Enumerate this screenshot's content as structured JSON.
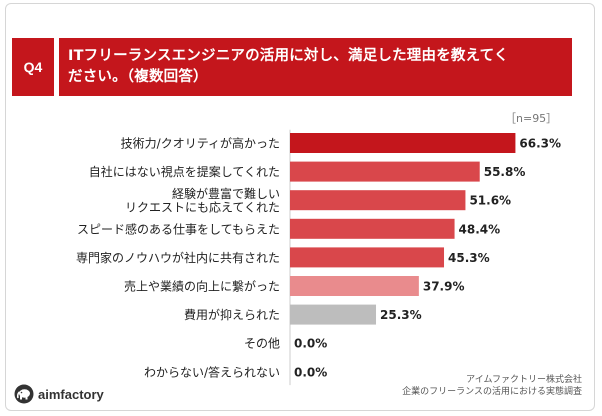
{
  "header": {
    "badge": "Q4",
    "question_line1": "ITフリーランスエンジニアの活用に対し、満足した理由を教えてく",
    "question_line2": "ださい。（複数回答）"
  },
  "sample_note": "［n=95］",
  "chart_data": {
    "type": "bar",
    "orientation": "horizontal",
    "unit": "%",
    "categories": [
      "技術力/クオリティが高かった",
      "自社にはない視点を提案してくれた",
      "経験が豊富で難しいリクエストにも応えてくれた",
      "スピード感のある仕事をしてもらえた",
      "専門家のノウハウが社内に共有された",
      "売上や業績の向上に繋がった",
      "費用が抑えられた",
      "その他",
      "わからない/答えられない"
    ],
    "category_lines": [
      [
        "技術力/クオリティが高かった"
      ],
      [
        "自社にはない視点を提案してくれた"
      ],
      [
        "経験が豊富で難しい",
        "リクエストにも応えてくれた"
      ],
      [
        "スピード感のある仕事をしてもらえた"
      ],
      [
        "専門家のノウハウが社内に共有された"
      ],
      [
        "売上や業績の向上に繋がった"
      ],
      [
        "費用が抑えられた"
      ],
      [
        "その他"
      ],
      [
        "わからない/答えられない"
      ]
    ],
    "values": [
      66.3,
      55.8,
      51.6,
      48.4,
      45.3,
      37.9,
      25.3,
      0.0,
      0.0
    ],
    "value_labels": [
      "66.3%",
      "55.8%",
      "51.6%",
      "48.4%",
      "45.3%",
      "37.9%",
      "25.3%",
      "0.0%",
      "0.0%"
    ],
    "colors": [
      "#c4161c",
      "#d9474b",
      "#d9474b",
      "#d9474b",
      "#d9474b",
      "#e98b8d",
      "#bdbdbd",
      "#bdbdbd",
      "#bdbdbd"
    ],
    "xlim": [
      0,
      100
    ]
  },
  "source": {
    "line1": "アイムファクトリー株式会社",
    "line2": "企業のフリーランスの活用における実態調査"
  },
  "logo": {
    "text": "aimfactory",
    "icon": "elephant-icon",
    "color": "#333333"
  }
}
